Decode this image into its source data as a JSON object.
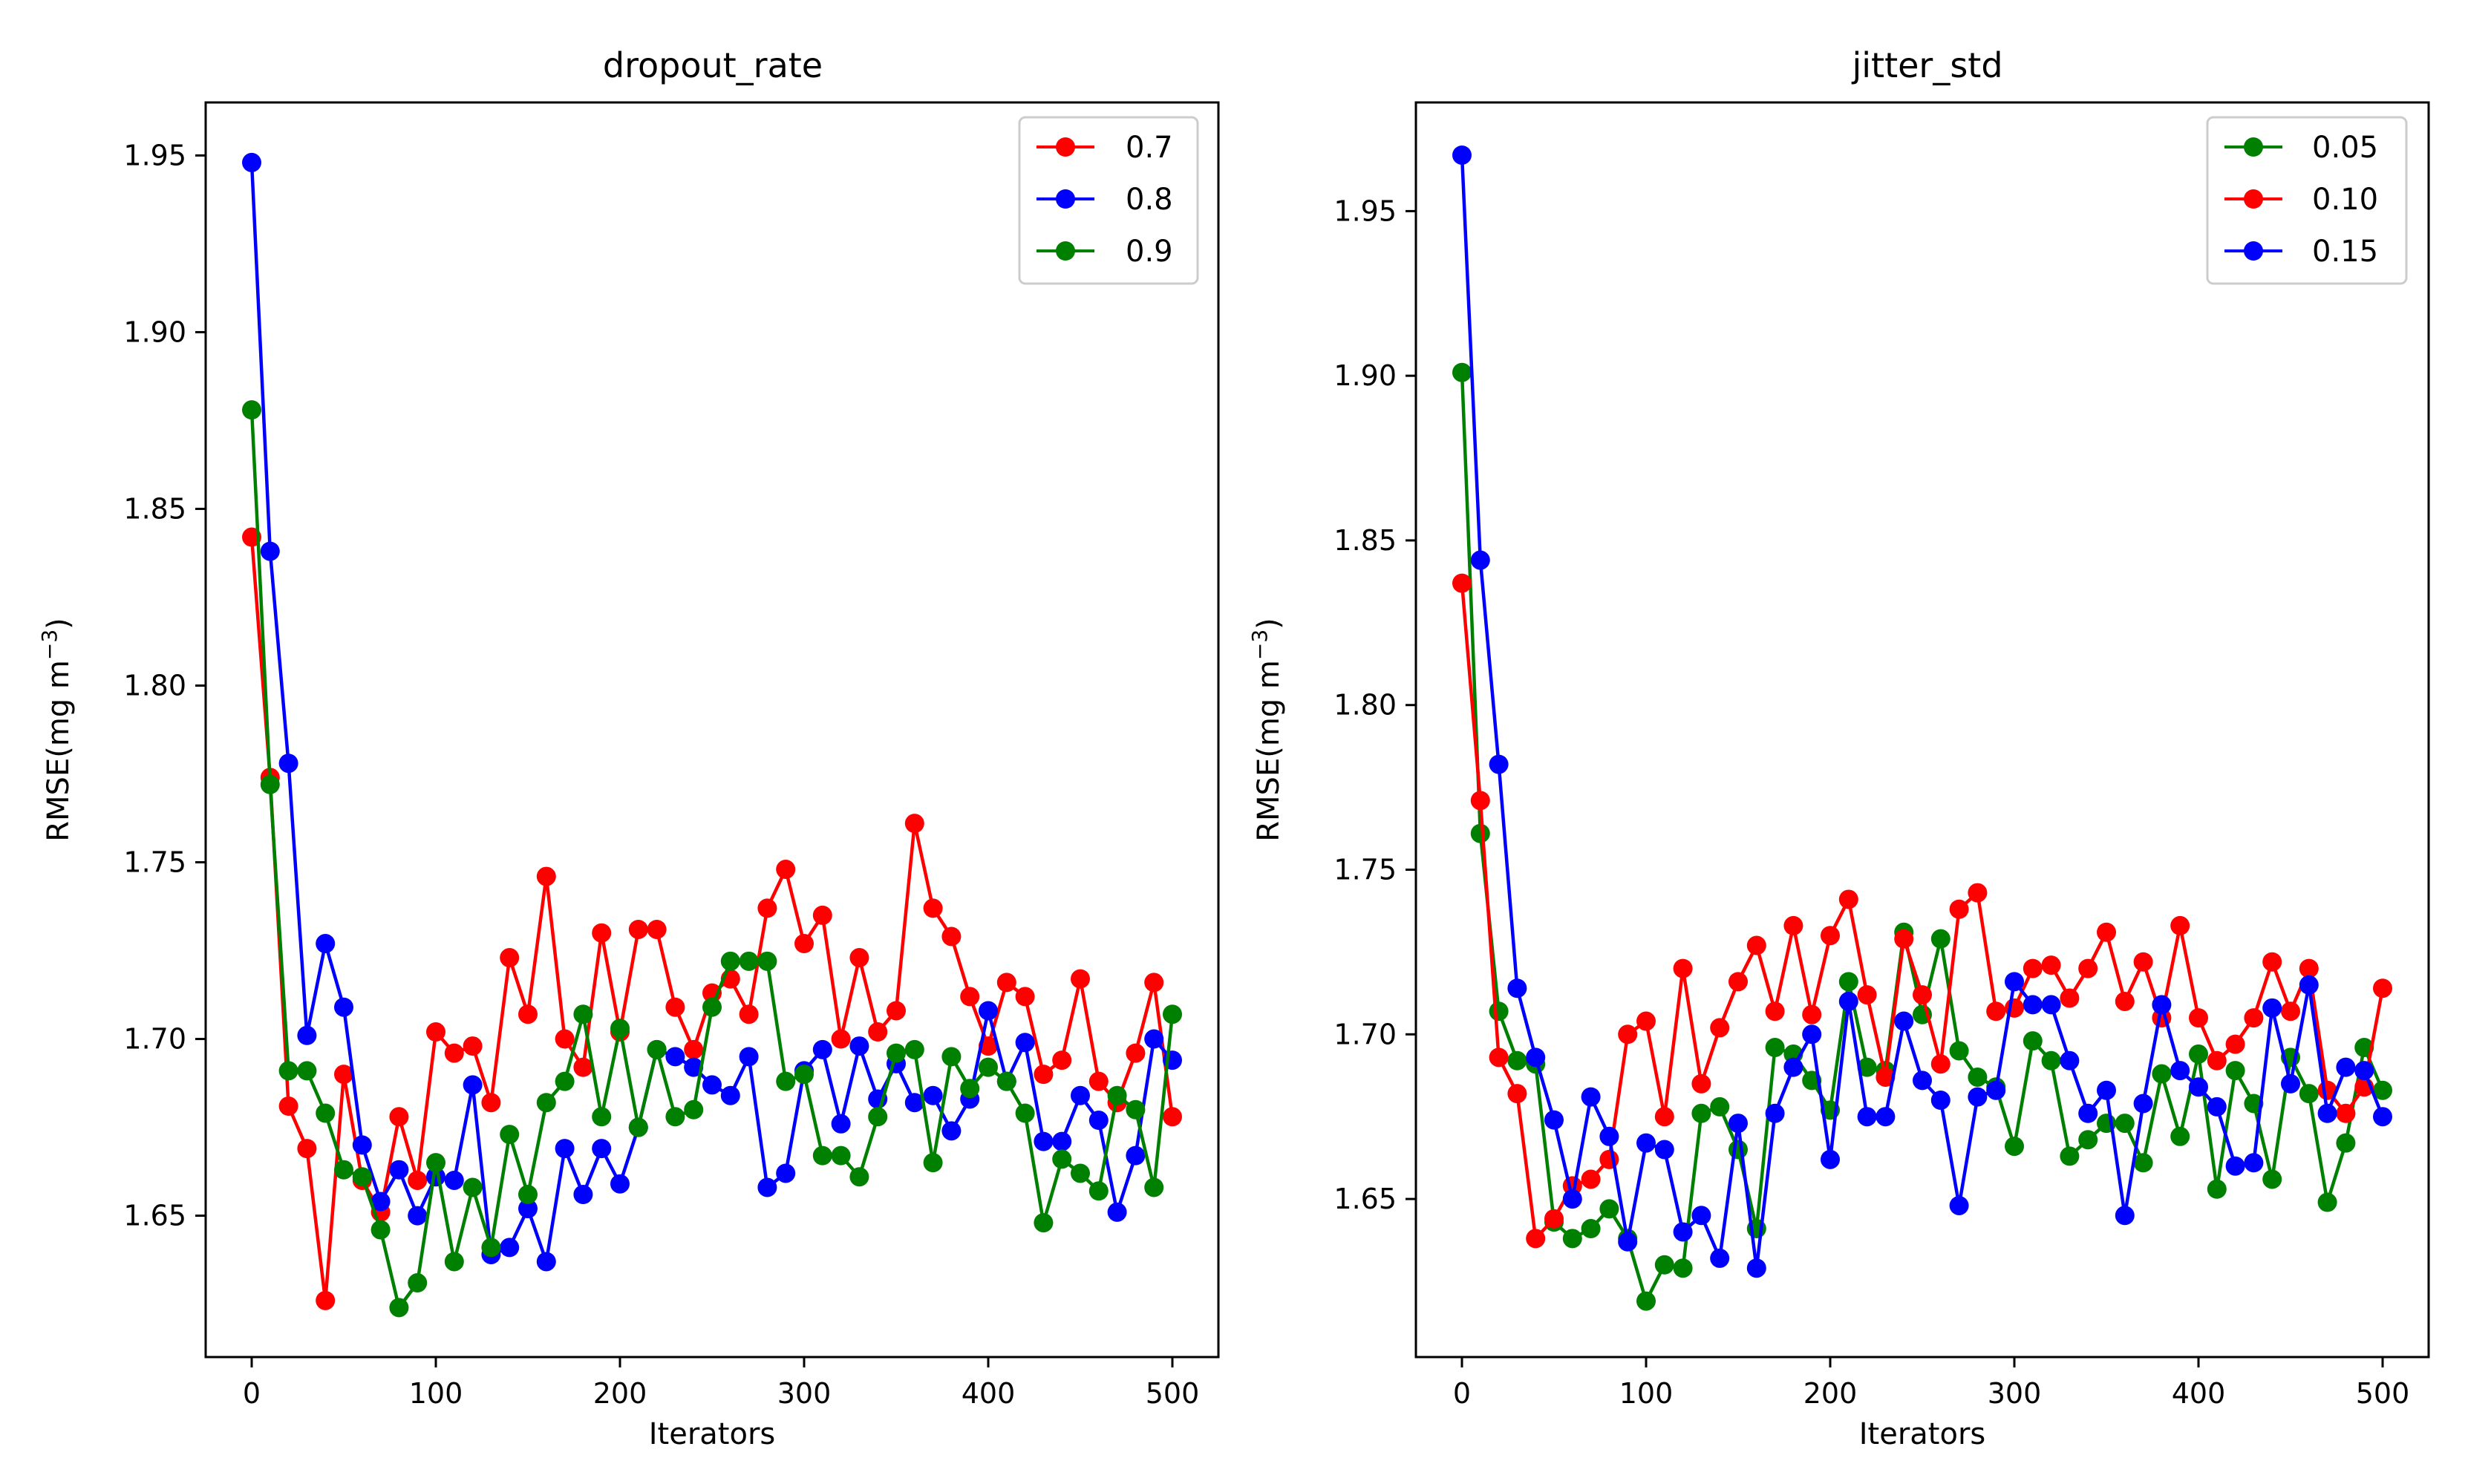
{
  "chart_data": [
    {
      "type": "line",
      "title": "dropout_rate",
      "xlabel": "Iterators",
      "ylabel": "RMSE(mg m",
      "ylabel_sup": "−3",
      "ylabel_close": ")",
      "xlim": [
        -25,
        525
      ],
      "ylim": [
        1.61,
        1.965
      ],
      "xticks": [
        0,
        100,
        200,
        300,
        400,
        500
      ],
      "xtick_labels": [
        "0",
        "100",
        "200",
        "300",
        "400",
        "500"
      ],
      "yticks": [
        1.65,
        1.7,
        1.75,
        1.8,
        1.85,
        1.9,
        1.95
      ],
      "ytick_labels": [
        "1.65",
        "1.70",
        "1.75",
        "1.80",
        "1.85",
        "1.90",
        "1.95"
      ],
      "legend_position": "upper right",
      "x": [
        0,
        10,
        20,
        30,
        40,
        50,
        60,
        70,
        80,
        90,
        100,
        110,
        120,
        130,
        140,
        150,
        160,
        170,
        180,
        190,
        200,
        210,
        220,
        230,
        240,
        250,
        260,
        270,
        280,
        290,
        300,
        310,
        320,
        330,
        340,
        350,
        360,
        370,
        380,
        390,
        400,
        410,
        420,
        430,
        440,
        450,
        460,
        470,
        480,
        490,
        500
      ],
      "series": [
        {
          "name": "0.7",
          "color": "#ff0000",
          "values": [
            1.842,
            1.774,
            1.681,
            1.669,
            1.626,
            1.69,
            1.66,
            1.651,
            1.678,
            1.66,
            1.702,
            1.696,
            1.698,
            1.682,
            1.723,
            1.707,
            1.746,
            1.7,
            1.692,
            1.73,
            1.702,
            1.731,
            1.731,
            1.709,
            1.697,
            1.713,
            1.717,
            1.707,
            1.737,
            1.748,
            1.727,
            1.735,
            1.7,
            1.723,
            1.702,
            1.708,
            1.761,
            1.737,
            1.729,
            1.712,
            1.698,
            1.716,
            1.712,
            1.69,
            1.694,
            1.717,
            1.688,
            1.682,
            1.696,
            1.716,
            1.678
          ]
        },
        {
          "name": "0.8",
          "color": "#0000ff",
          "values": [
            1.948,
            1.838,
            1.778,
            1.701,
            1.727,
            1.709,
            1.67,
            1.654,
            1.663,
            1.65,
            1.661,
            1.66,
            1.687,
            1.639,
            1.641,
            1.652,
            1.637,
            1.669,
            1.656,
            1.669,
            1.659,
            1.675,
            1.697,
            1.695,
            1.692,
            1.687,
            1.684,
            1.695,
            1.658,
            1.662,
            1.691,
            1.697,
            1.676,
            1.698,
            1.683,
            1.693,
            1.682,
            1.684,
            1.674,
            1.683,
            1.708,
            1.688,
            1.699,
            1.671,
            1.671,
            1.684,
            1.677,
            1.651,
            1.667,
            1.7,
            1.694
          ]
        },
        {
          "name": "0.9",
          "color": "#008000",
          "values": [
            1.878,
            1.772,
            1.691,
            1.691,
            1.679,
            1.663,
            1.661,
            1.646,
            1.624,
            1.631,
            1.665,
            1.637,
            1.658,
            1.641,
            1.673,
            1.656,
            1.682,
            1.688,
            1.707,
            1.678,
            1.703,
            1.675,
            1.697,
            1.678,
            1.68,
            1.709,
            1.722,
            1.722,
            1.722,
            1.688,
            1.69,
            1.667,
            1.667,
            1.661,
            1.678,
            1.696,
            1.697,
            1.665,
            1.695,
            1.686,
            1.692,
            1.688,
            1.679,
            1.648,
            1.666,
            1.662,
            1.657,
            1.684,
            1.68,
            1.658,
            1.707
          ]
        }
      ]
    },
    {
      "type": "line",
      "title": "jitter_std",
      "xlabel": "Iterators",
      "ylabel": "RMSE(mg m",
      "ylabel_sup": "−3",
      "ylabel_close": ")",
      "xlim": [
        -25,
        525
      ],
      "ylim": [
        1.602,
        1.983
      ],
      "xticks": [
        0,
        100,
        200,
        300,
        400,
        500
      ],
      "xtick_labels": [
        "0",
        "100",
        "200",
        "300",
        "400",
        "500"
      ],
      "yticks": [
        1.65,
        1.7,
        1.75,
        1.8,
        1.85,
        1.9,
        1.95
      ],
      "ytick_labels": [
        "1.65",
        "1.70",
        "1.75",
        "1.80",
        "1.85",
        "1.90",
        "1.95"
      ],
      "legend_position": "upper right",
      "x": [
        0,
        10,
        20,
        30,
        40,
        50,
        60,
        70,
        80,
        90,
        100,
        110,
        120,
        130,
        140,
        150,
        160,
        170,
        180,
        190,
        200,
        210,
        220,
        230,
        240,
        250,
        260,
        270,
        280,
        290,
        300,
        310,
        320,
        330,
        340,
        350,
        360,
        370,
        380,
        390,
        400,
        410,
        420,
        430,
        440,
        450,
        460,
        470,
        480,
        490,
        500
      ],
      "series": [
        {
          "name": "0.05",
          "color": "#008000",
          "values": [
            1.901,
            1.761,
            1.707,
            1.692,
            1.691,
            1.643,
            1.638,
            1.641,
            1.647,
            1.638,
            1.619,
            1.63,
            1.629,
            1.676,
            1.678,
            1.665,
            1.641,
            1.696,
            1.694,
            1.686,
            1.677,
            1.716,
            1.69,
            1.689,
            1.731,
            1.706,
            1.729,
            1.695,
            1.687,
            1.684,
            1.666,
            1.698,
            1.692,
            1.663,
            1.668,
            1.673,
            1.673,
            1.661,
            1.688,
            1.669,
            1.694,
            1.653,
            1.689,
            1.679,
            1.656,
            1.693,
            1.682,
            1.649,
            1.667,
            1.696,
            1.683
          ]
        },
        {
          "name": "0.10",
          "color": "#ff0000",
          "values": [
            1.837,
            1.771,
            1.693,
            1.682,
            1.638,
            1.644,
            1.654,
            1.656,
            1.662,
            1.7,
            1.704,
            1.675,
            1.72,
            1.685,
            1.702,
            1.716,
            1.727,
            1.707,
            1.733,
            1.706,
            1.73,
            1.741,
            1.712,
            1.687,
            1.729,
            1.712,
            1.691,
            1.738,
            1.743,
            1.707,
            1.708,
            1.72,
            1.721,
            1.711,
            1.72,
            1.731,
            1.71,
            1.722,
            1.705,
            1.733,
            1.705,
            1.692,
            1.697,
            1.705,
            1.722,
            1.707,
            1.72,
            1.683,
            1.676,
            1.684,
            1.714
          ]
        },
        {
          "name": "0.15",
          "color": "#0000ff",
          "values": [
            1.967,
            1.844,
            1.782,
            1.714,
            1.693,
            1.674,
            1.65,
            1.681,
            1.669,
            1.637,
            1.667,
            1.665,
            1.64,
            1.645,
            1.632,
            1.673,
            1.629,
            1.676,
            1.69,
            1.7,
            1.662,
            1.71,
            1.675,
            1.675,
            1.704,
            1.686,
            1.68,
            1.648,
            1.681,
            1.683,
            1.716,
            1.709,
            1.709,
            1.692,
            1.676,
            1.683,
            1.645,
            1.679,
            1.709,
            1.689,
            1.684,
            1.678,
            1.66,
            1.661,
            1.708,
            1.685,
            1.715,
            1.676,
            1.69,
            1.689,
            1.675
          ]
        }
      ]
    }
  ]
}
